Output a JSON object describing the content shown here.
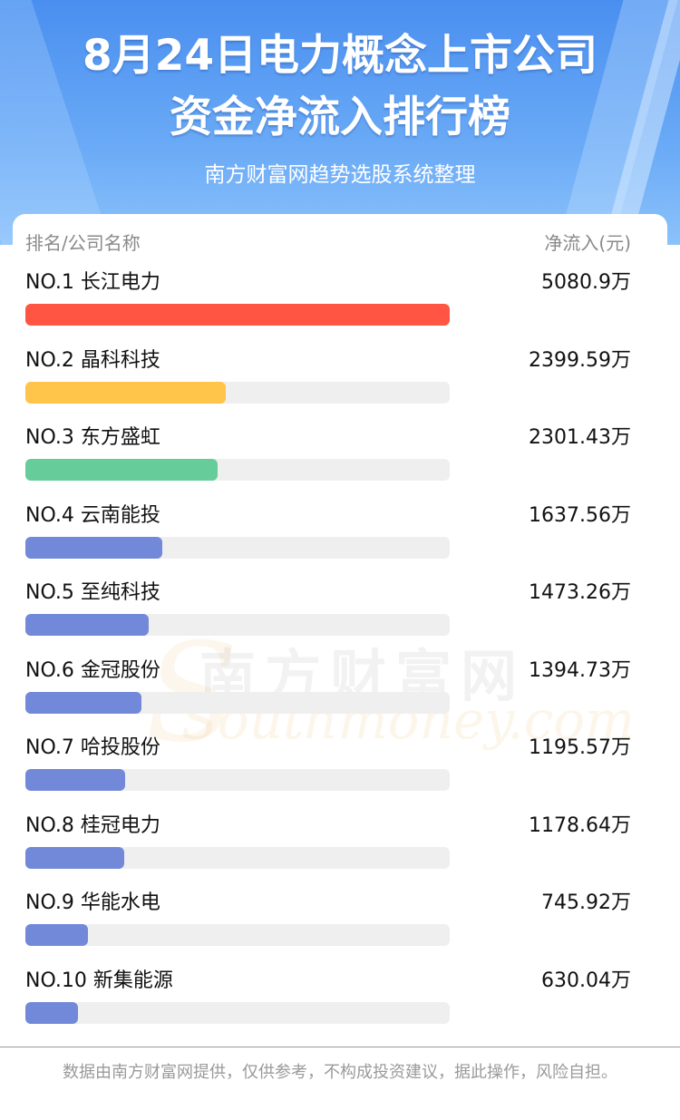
{
  "header": {
    "title_line1": "8月24日电力概念上市公司",
    "title_line2": "资金净流入排行榜",
    "subtitle": "南方财富网趋势选股系统整理"
  },
  "columns": {
    "left": "排名/公司名称",
    "right": "净流入(元)"
  },
  "watermark": {
    "cn": "南方财富网",
    "en": "Southmoney.com"
  },
  "footer": {
    "text": "数据由南方财富网提供，仅供参考，不构成投资建议，据此操作，风险自担。"
  },
  "colors": {
    "bar_1": "#ff5542",
    "bar_2": "#ffc44a",
    "bar_3": "#66cc99",
    "bar_other": "#7189d8",
    "track": "#efefef"
  },
  "chart_data": {
    "type": "bar",
    "title": "8月24日电力概念上市公司资金净流入排行榜",
    "unit": "万",
    "categories": [
      "NO.1 长江电力",
      "NO.2 晶科科技",
      "NO.3 东方盛虹",
      "NO.4 云南能投",
      "NO.5 至纯科技",
      "NO.6 金冠股份",
      "NO.7 哈投股份",
      "NO.8 桂冠电力",
      "NO.9 华能水电",
      "NO.10 新集能源"
    ],
    "values": [
      5080.9,
      2399.59,
      2301.43,
      1637.56,
      1473.26,
      1394.73,
      1195.57,
      1178.64,
      745.92,
      630.04
    ],
    "value_labels": [
      "5080.9万",
      "2399.59万",
      "2301.43万",
      "1637.56万",
      "1473.26万",
      "1394.73万",
      "1195.57万",
      "1178.64万",
      "745.92万",
      "630.04万"
    ]
  }
}
